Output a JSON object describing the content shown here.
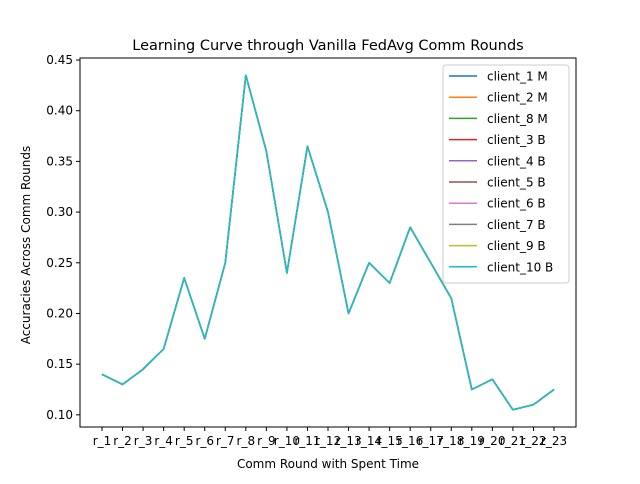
{
  "chart_data": {
    "type": "line",
    "title": "Learning Curve through Vanilla FedAvg Comm Rounds",
    "xlabel": "Comm Round with Spent Time",
    "ylabel": "Accuracies Across Comm Rounds",
    "categories": [
      "r_1",
      "r_2",
      "r_3",
      "r_4",
      "r_5",
      "r_6",
      "r_7",
      "r_8",
      "r_9",
      "r_10",
      "r_11",
      "r_12",
      "r_13",
      "r_14",
      "r_15",
      "r_16",
      "r_17",
      "r_18",
      "r_19",
      "r_20",
      "r_21",
      "r_22",
      "r_23"
    ],
    "ylim": [
      0.088,
      0.452
    ],
    "yticks": [
      "0.10",
      "0.15",
      "0.20",
      "0.25",
      "0.30",
      "0.35",
      "0.40",
      "0.45"
    ],
    "legend_position": "upper-right",
    "grid": false,
    "series": [
      {
        "name": "client_1 M",
        "color": "#1f77b4",
        "values": [
          0.14,
          0.13,
          0.145,
          0.165,
          0.235,
          0.175,
          0.25,
          0.435,
          0.36,
          0.24,
          0.365,
          0.3,
          0.2,
          0.25,
          0.23,
          0.285,
          0.25,
          0.215,
          0.125,
          0.135,
          0.105,
          0.11,
          0.125
        ]
      },
      {
        "name": "client_2 M",
        "color": "#ff7f0e",
        "values": [
          0.14,
          0.13,
          0.145,
          0.165,
          0.235,
          0.175,
          0.25,
          0.435,
          0.36,
          0.24,
          0.365,
          0.3,
          0.2,
          0.25,
          0.23,
          0.285,
          0.25,
          0.215,
          0.125,
          0.135,
          0.105,
          0.11,
          0.125
        ]
      },
      {
        "name": "client_8 M",
        "color": "#2ca02c",
        "values": [
          0.14,
          0.13,
          0.145,
          0.165,
          0.235,
          0.175,
          0.25,
          0.435,
          0.36,
          0.24,
          0.365,
          0.3,
          0.2,
          0.25,
          0.23,
          0.285,
          0.25,
          0.215,
          0.125,
          0.135,
          0.105,
          0.11,
          0.125
        ]
      },
      {
        "name": "client_3 B",
        "color": "#d62728",
        "values": [
          0.14,
          0.13,
          0.145,
          0.165,
          0.235,
          0.175,
          0.25,
          0.435,
          0.36,
          0.24,
          0.365,
          0.3,
          0.2,
          0.25,
          0.23,
          0.285,
          0.25,
          0.215,
          0.125,
          0.135,
          0.105,
          0.11,
          0.125
        ]
      },
      {
        "name": "client_4 B",
        "color": "#9467bd",
        "values": [
          0.14,
          0.13,
          0.145,
          0.165,
          0.235,
          0.175,
          0.25,
          0.435,
          0.36,
          0.24,
          0.365,
          0.3,
          0.2,
          0.25,
          0.23,
          0.285,
          0.25,
          0.215,
          0.125,
          0.135,
          0.105,
          0.11,
          0.125
        ]
      },
      {
        "name": "client_5 B",
        "color": "#8c564b",
        "values": [
          0.14,
          0.13,
          0.145,
          0.165,
          0.235,
          0.175,
          0.25,
          0.435,
          0.36,
          0.24,
          0.365,
          0.3,
          0.2,
          0.25,
          0.23,
          0.285,
          0.25,
          0.215,
          0.125,
          0.135,
          0.105,
          0.11,
          0.125
        ]
      },
      {
        "name": "client_6 B",
        "color": "#e377c2",
        "values": [
          0.14,
          0.13,
          0.145,
          0.165,
          0.235,
          0.175,
          0.25,
          0.435,
          0.36,
          0.24,
          0.365,
          0.3,
          0.2,
          0.25,
          0.23,
          0.285,
          0.25,
          0.215,
          0.125,
          0.135,
          0.105,
          0.11,
          0.125
        ]
      },
      {
        "name": "client_7 B",
        "color": "#7f7f7f",
        "values": [
          0.14,
          0.13,
          0.145,
          0.165,
          0.235,
          0.175,
          0.25,
          0.435,
          0.36,
          0.24,
          0.365,
          0.3,
          0.2,
          0.25,
          0.23,
          0.285,
          0.25,
          0.215,
          0.125,
          0.135,
          0.105,
          0.11,
          0.125
        ]
      },
      {
        "name": "client_9 B",
        "color": "#bcbd22",
        "values": [
          0.14,
          0.13,
          0.145,
          0.165,
          0.235,
          0.175,
          0.25,
          0.435,
          0.36,
          0.24,
          0.365,
          0.3,
          0.2,
          0.25,
          0.23,
          0.285,
          0.25,
          0.215,
          0.125,
          0.135,
          0.105,
          0.11,
          0.125
        ]
      },
      {
        "name": "client_10 B",
        "color": "#17becf",
        "values": [
          0.14,
          0.13,
          0.145,
          0.165,
          0.235,
          0.175,
          0.25,
          0.435,
          0.36,
          0.24,
          0.365,
          0.3,
          0.2,
          0.25,
          0.23,
          0.285,
          0.25,
          0.215,
          0.125,
          0.135,
          0.105,
          0.11,
          0.125
        ]
      }
    ]
  }
}
